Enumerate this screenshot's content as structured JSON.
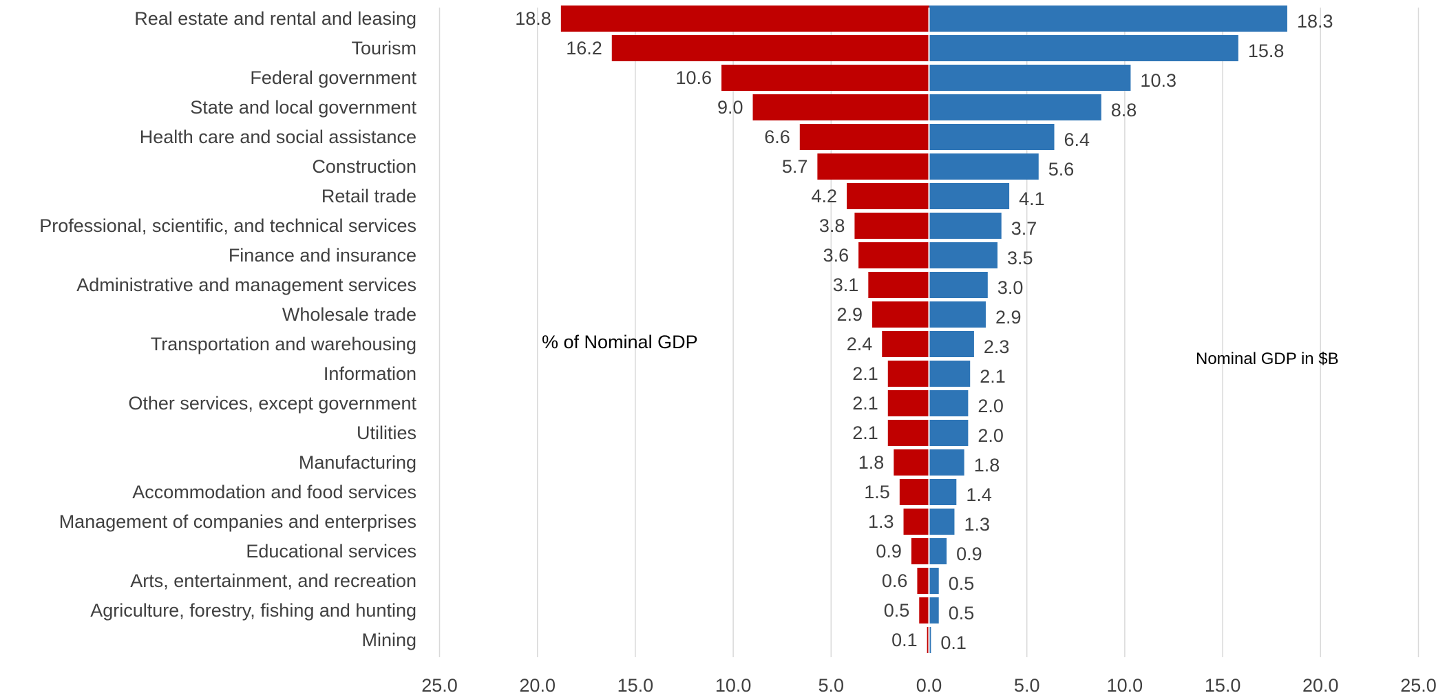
{
  "chart_data": {
    "type": "bar",
    "orientation": "horizontal-butterfly",
    "categories": [
      "Real estate and rental and leasing",
      "Tourism",
      "Federal government",
      "State and local government",
      "Health care and social assistance",
      "Construction",
      "Retail trade",
      "Professional, scientific, and technical services",
      "Finance and insurance",
      "Administrative and management services",
      "Wholesale trade",
      "Transportation and warehousing",
      "Information",
      "Other services, except government",
      "Utilities",
      "Manufacturing",
      "Accommodation and food services",
      "Management of companies and enterprises",
      "Educational services",
      "Arts, entertainment, and recreation",
      "Agriculture, forestry, fishing and hunting",
      "Mining"
    ],
    "series": [
      {
        "name": "% of Nominal GDP",
        "side": "left",
        "color": "#C00000",
        "values": [
          18.8,
          16.2,
          10.6,
          9.0,
          6.6,
          5.7,
          4.2,
          3.8,
          3.6,
          3.1,
          2.9,
          2.4,
          2.1,
          2.1,
          2.1,
          1.8,
          1.5,
          1.3,
          0.9,
          0.6,
          0.5,
          0.1
        ],
        "labels": [
          "18.8",
          "16.2",
          "10.6",
          "9.0",
          "6.6",
          "5.7",
          "4.2",
          "3.8",
          "3.6",
          "3.1",
          "2.9",
          "2.4",
          "2.1",
          "2.1",
          "2.1",
          "1.8",
          "1.5",
          "1.3",
          "0.9",
          "0.6",
          "0.5",
          "0.1"
        ]
      },
      {
        "name": "Nominal GDP in $B",
        "side": "right",
        "color": "#2E75B6",
        "values": [
          18.3,
          15.8,
          10.3,
          8.8,
          6.4,
          5.6,
          4.1,
          3.7,
          3.5,
          3.0,
          2.9,
          2.3,
          2.1,
          2.0,
          2.0,
          1.8,
          1.4,
          1.3,
          0.9,
          0.5,
          0.5,
          0.1
        ],
        "labels": [
          "18.3",
          "15.8",
          "10.3",
          "8.8",
          "6.4",
          "5.6",
          "4.1",
          "3.7",
          "3.5",
          "3.0",
          "2.9",
          "2.3",
          "2.1",
          "2.0",
          "2.0",
          "1.8",
          "1.4",
          "1.3",
          "0.9",
          "0.5",
          "0.5",
          "0.1"
        ]
      }
    ],
    "x_ticks": [
      "25.0",
      "20.0",
      "15.0",
      "10.0",
      "5.0",
      "0.0",
      "5.0",
      "10.0",
      "15.0",
      "20.0",
      "25.0"
    ],
    "xlim": [
      -25,
      25
    ],
    "grid": "vertical",
    "annotations": {
      "left": "% of Nominal GDP",
      "right": "Nominal GDP in $B"
    }
  }
}
